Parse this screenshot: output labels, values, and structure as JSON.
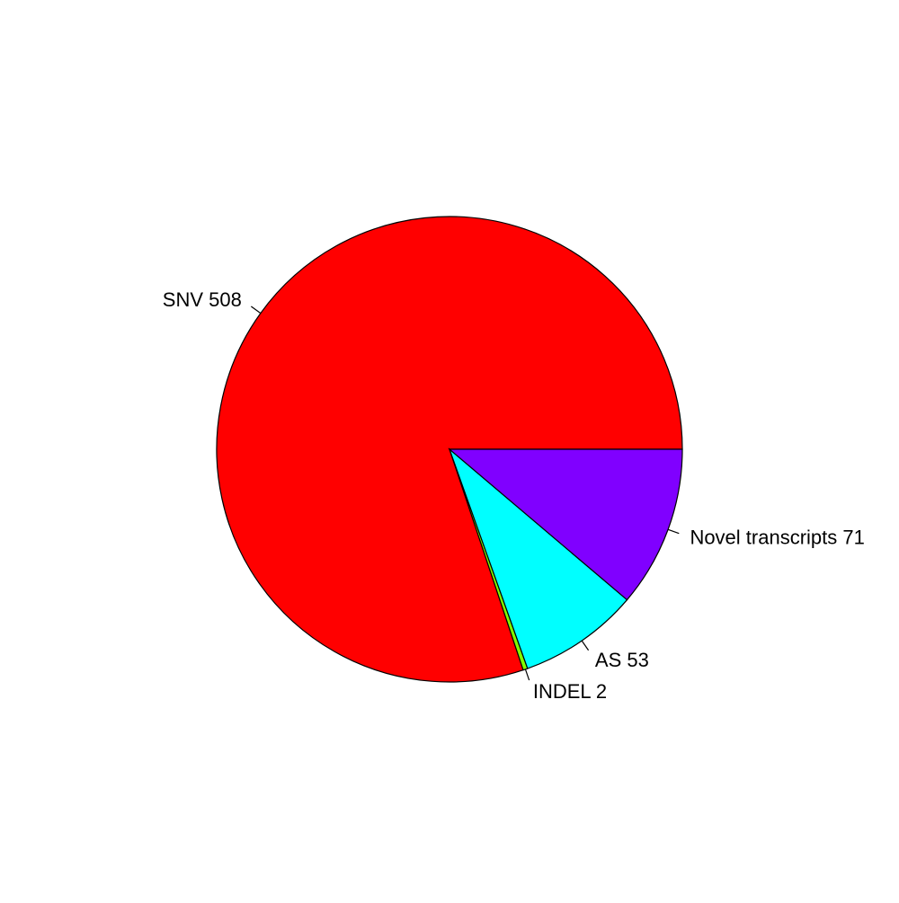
{
  "chart_data": {
    "type": "pie",
    "title": "",
    "slices": [
      {
        "label": "SNV 508",
        "value": 508,
        "color": "#FF0000"
      },
      {
        "label": "INDEL 2",
        "value": 2,
        "color": "#80FF00"
      },
      {
        "label": "AS 53",
        "value": 53,
        "color": "#00FFFF"
      },
      {
        "label": "Novel transcripts 71",
        "value": 71,
        "color": "#8000FF"
      }
    ],
    "direction": "counterclockwise",
    "start": "3-o'clock",
    "legend": "none",
    "labels": "outside-with-leader-lines"
  }
}
